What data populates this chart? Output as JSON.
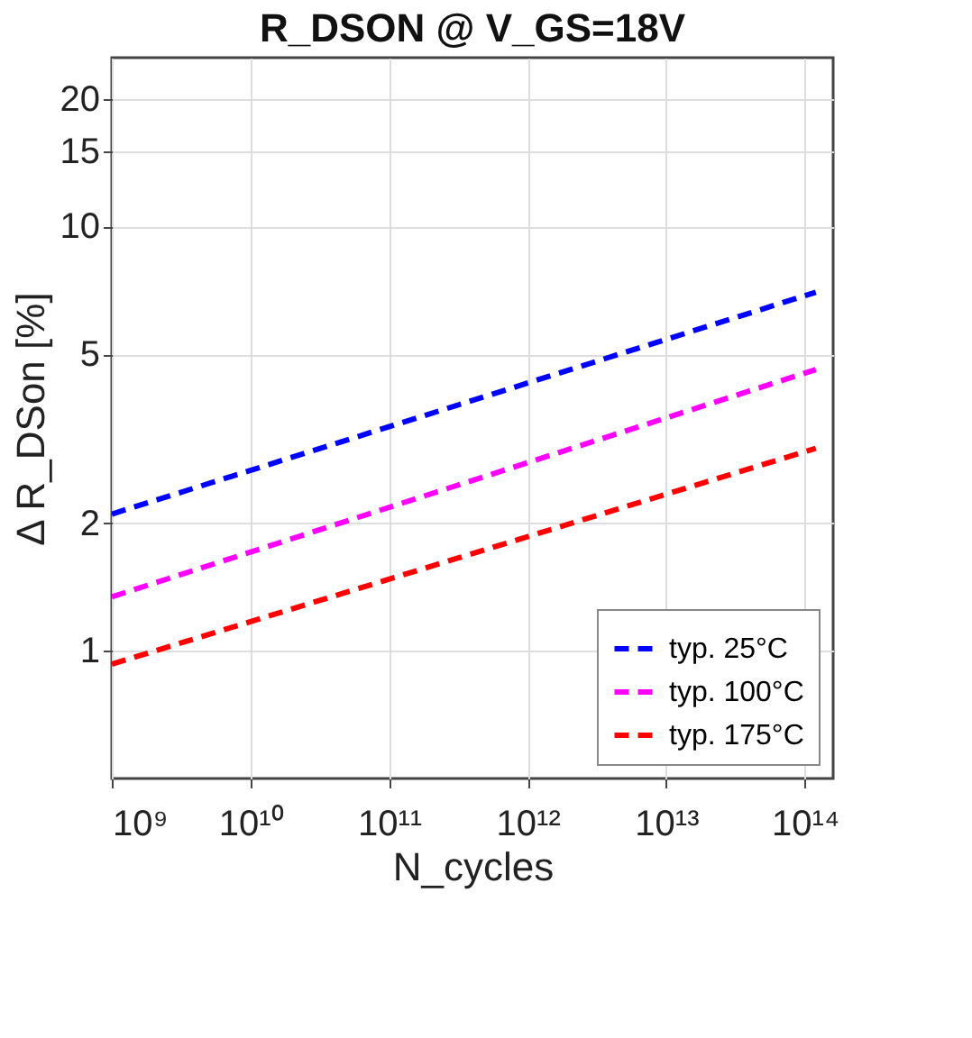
{
  "chart_data": {
    "type": "line",
    "title": "R_DSON @ V_GS=18V",
    "xlabel": "N_cycles",
    "ylabel": "Δ R_DSon [%]",
    "log": "xy",
    "grid": true,
    "legend": "bottom right",
    "line_style": "dashed",
    "marker": "none",
    "xlim": [
      1000000000.0,
      160000000000000.0
    ],
    "ylim": [
      0.5,
      25
    ],
    "x": [
      1000000000,
      120000000000000
    ],
    "xticks": [
      {
        "value": 1000000000.0,
        "label": "10⁹"
      },
      {
        "value": 10000000000.0,
        "label": "10¹⁰"
      },
      {
        "value": 100000000000.0,
        "label": "10¹¹"
      },
      {
        "value": 1000000000000.0,
        "label": "10¹²"
      },
      {
        "value": 10000000000000.0,
        "label": "10¹³"
      },
      {
        "value": 100000000000000.0,
        "label": "10¹⁴"
      }
    ],
    "yticks": [
      1,
      2,
      5,
      10,
      15,
      20
    ],
    "series": [
      {
        "name": "typ. 25°C",
        "color": "#0000ff",
        "values": [
          2.1,
          7.0
        ]
      },
      {
        "name": "typ. 100°C",
        "color": "#ff00ff",
        "values": [
          1.34,
          4.6
        ]
      },
      {
        "name": "typ. 175°C",
        "color": "#ff0000",
        "values": [
          0.93,
          3.0
        ]
      }
    ]
  }
}
